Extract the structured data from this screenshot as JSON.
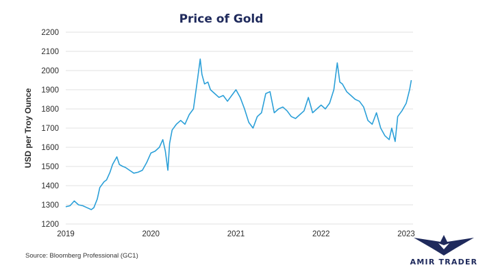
{
  "chart_data": {
    "type": "line",
    "title": "Price of Gold",
    "ylabel": "USD per Troy Ounce",
    "xlabel": "",
    "ylim": [
      1200,
      2200
    ],
    "yticks": [
      1200,
      1300,
      1400,
      1500,
      1600,
      1700,
      1800,
      1900,
      2000,
      2100,
      2200
    ],
    "xlim": [
      2019.0,
      2023.08
    ],
    "xticks": [
      "2019",
      "2020",
      "2021",
      "2022",
      "2023"
    ],
    "grid": "horizontal",
    "legend": "none",
    "line_color": "#2a9fd8",
    "series": [
      {
        "x": [
          2019.0,
          2019.05,
          2019.1,
          2019.15,
          2019.2,
          2019.25,
          2019.3,
          2019.33,
          2019.37,
          2019.4,
          2019.45,
          2019.48,
          2019.52,
          2019.55,
          2019.6,
          2019.63,
          2019.67,
          2019.7,
          2019.75,
          2019.8,
          2019.85,
          2019.9,
          2019.95,
          2020.0,
          2020.05,
          2020.1,
          2020.14,
          2020.17,
          2020.2,
          2020.22,
          2020.25,
          2020.3,
          2020.35,
          2020.4,
          2020.45,
          2020.5,
          2020.55,
          2020.58,
          2020.6,
          2020.63,
          2020.67,
          2020.7,
          2020.75,
          2020.8,
          2020.85,
          2020.9,
          2020.95,
          2021.0,
          2021.05,
          2021.1,
          2021.15,
          2021.2,
          2021.25,
          2021.3,
          2021.35,
          2021.4,
          2021.45,
          2021.5,
          2021.55,
          2021.6,
          2021.65,
          2021.7,
          2021.75,
          2021.8,
          2021.85,
          2021.9,
          2021.95,
          2022.0,
          2022.05,
          2022.1,
          2022.15,
          2022.19,
          2022.22,
          2022.25,
          2022.3,
          2022.35,
          2022.4,
          2022.45,
          2022.5,
          2022.55,
          2022.6,
          2022.65,
          2022.7,
          2022.75,
          2022.8,
          2022.83,
          2022.87,
          2022.9,
          2022.95,
          2023.0,
          2023.04,
          2023.06
        ],
        "values": [
          1290,
          1295,
          1320,
          1300,
          1295,
          1285,
          1275,
          1285,
          1330,
          1390,
          1420,
          1430,
          1470,
          1510,
          1550,
          1510,
          1500,
          1495,
          1480,
          1465,
          1470,
          1480,
          1520,
          1570,
          1580,
          1600,
          1640,
          1580,
          1480,
          1620,
          1690,
          1720,
          1740,
          1720,
          1770,
          1800,
          1960,
          2060,
          1980,
          1930,
          1940,
          1900,
          1880,
          1860,
          1870,
          1840,
          1870,
          1900,
          1860,
          1800,
          1730,
          1700,
          1760,
          1780,
          1880,
          1890,
          1780,
          1800,
          1810,
          1790,
          1760,
          1750,
          1770,
          1790,
          1860,
          1780,
          1800,
          1820,
          1800,
          1830,
          1900,
          2040,
          1940,
          1930,
          1890,
          1870,
          1850,
          1840,
          1810,
          1740,
          1720,
          1780,
          1700,
          1660,
          1640,
          1700,
          1630,
          1760,
          1790,
          1830,
          1900,
          1950
        ]
      }
    ]
  },
  "footer": {
    "source": "Source: Bloomberg Professional (GC1)",
    "brand": "AMIR TRADER"
  },
  "colors": {
    "title": "#1f2a5c",
    "line": "#2a9fd8",
    "grid": "#e2e2e2",
    "brand": "#1f2a5c"
  }
}
